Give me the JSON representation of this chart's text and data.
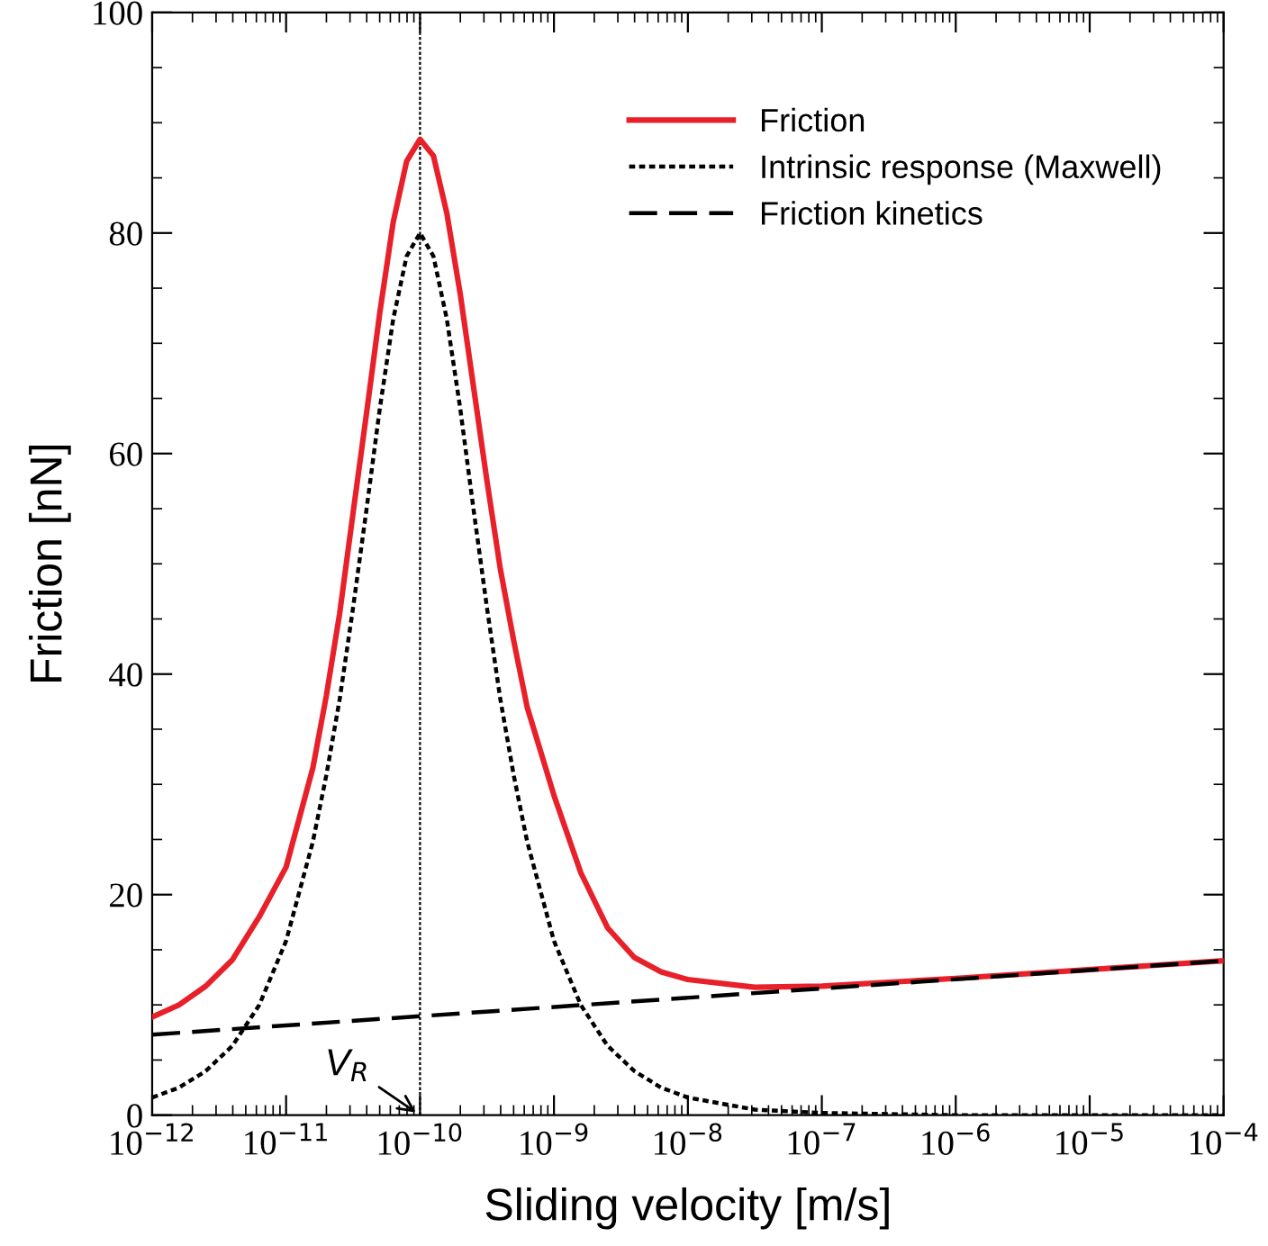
{
  "chart_data": {
    "type": "line",
    "xlabel": "Sliding velocity [m/s]",
    "ylabel": "Friction [nN]",
    "log": "x",
    "xlim": [
      1e-12,
      0.0001
    ],
    "xticks": [
      {
        "value": 1e-12,
        "label": "10$^{−12}$"
      },
      {
        "value": 1e-11,
        "label": "10$^{−11}$"
      },
      {
        "value": 1e-10,
        "label": "10$^{−10}$"
      },
      {
        "value": 1e-09,
        "label": "10$^{−9}$"
      },
      {
        "value": 1e-08,
        "label": "10$^{−8}$"
      },
      {
        "value": 1e-07,
        "label": "10$^{−7}$"
      },
      {
        "value": 1e-06,
        "label": "10$^{−6}$"
      },
      {
        "value": 1e-05,
        "label": "10$^{−5}$"
      },
      {
        "value": 0.0001,
        "label": "10$^{−4}$"
      }
    ],
    "ylim": [
      0,
      100
    ],
    "yticks": [
      0,
      20,
      40,
      60,
      80,
      100
    ],
    "grid": false,
    "legend": "top right",
    "marker": "none",
    "x": [
      1e-12,
      1.585e-12,
      2.512e-12,
      3.981e-12,
      6.31e-12,
      1e-11,
      1.585e-11,
      1.995e-11,
      2.512e-11,
      3.162e-11,
      3.981e-11,
      5.012e-11,
      6.31e-11,
      7.943e-11,
      1e-10,
      1.259e-10,
      1.585e-10,
      1.995e-10,
      2.512e-10,
      3.162e-10,
      3.981e-10,
      5.012e-10,
      6.31e-10,
      1e-09,
      1.585e-09,
      2.512e-09,
      3.981e-09,
      6.31e-09,
      1e-08,
      3.162e-08,
      1e-07,
      1e-06,
      0.0001
    ],
    "series": [
      {
        "name": "Friction",
        "color": "#e8202a",
        "line_style": "solid",
        "values": [
          8.9,
          10.0,
          11.7,
          14.1,
          18.0,
          22.5,
          31.5,
          38.0,
          45.5,
          54.6,
          63.6,
          72.8,
          81.0,
          86.5,
          88.5,
          87.0,
          81.8,
          74.5,
          66.0,
          57.5,
          49.5,
          43.0,
          37.0,
          29.0,
          22.0,
          17.0,
          14.3,
          13.0,
          12.3,
          11.6,
          11.7,
          12.4,
          14.0
        ]
      },
      {
        "name": "Intrinsic response (Maxwell)",
        "color": "#000000",
        "line_style": "dotted",
        "values": [
          1.6,
          2.5,
          4.0,
          6.3,
          10.0,
          15.8,
          24.8,
          30.8,
          37.7,
          46.0,
          54.9,
          64.1,
          72.2,
          77.9,
          80,
          77.9,
          72.2,
          64.1,
          54.9,
          46.0,
          37.7,
          30.8,
          24.8,
          15.8,
          10.0,
          6.3,
          4.0,
          2.5,
          1.6,
          0.5,
          0.2,
          0,
          0
        ]
      },
      {
        "name": "Friction kinetics",
        "color": "#000000",
        "line_style": "dashed",
        "x": [
          1e-12,
          0.0001
        ],
        "values": [
          7.3,
          14.0
        ]
      }
    ],
    "ref_lines": [
      {
        "axis": "x",
        "value": 1e-10,
        "color": "#000000",
        "line_style": "dotted"
      }
    ],
    "annotations": [
      {
        "text": "V$_{R}$",
        "x": 1e-10,
        "y": 0
      }
    ]
  }
}
